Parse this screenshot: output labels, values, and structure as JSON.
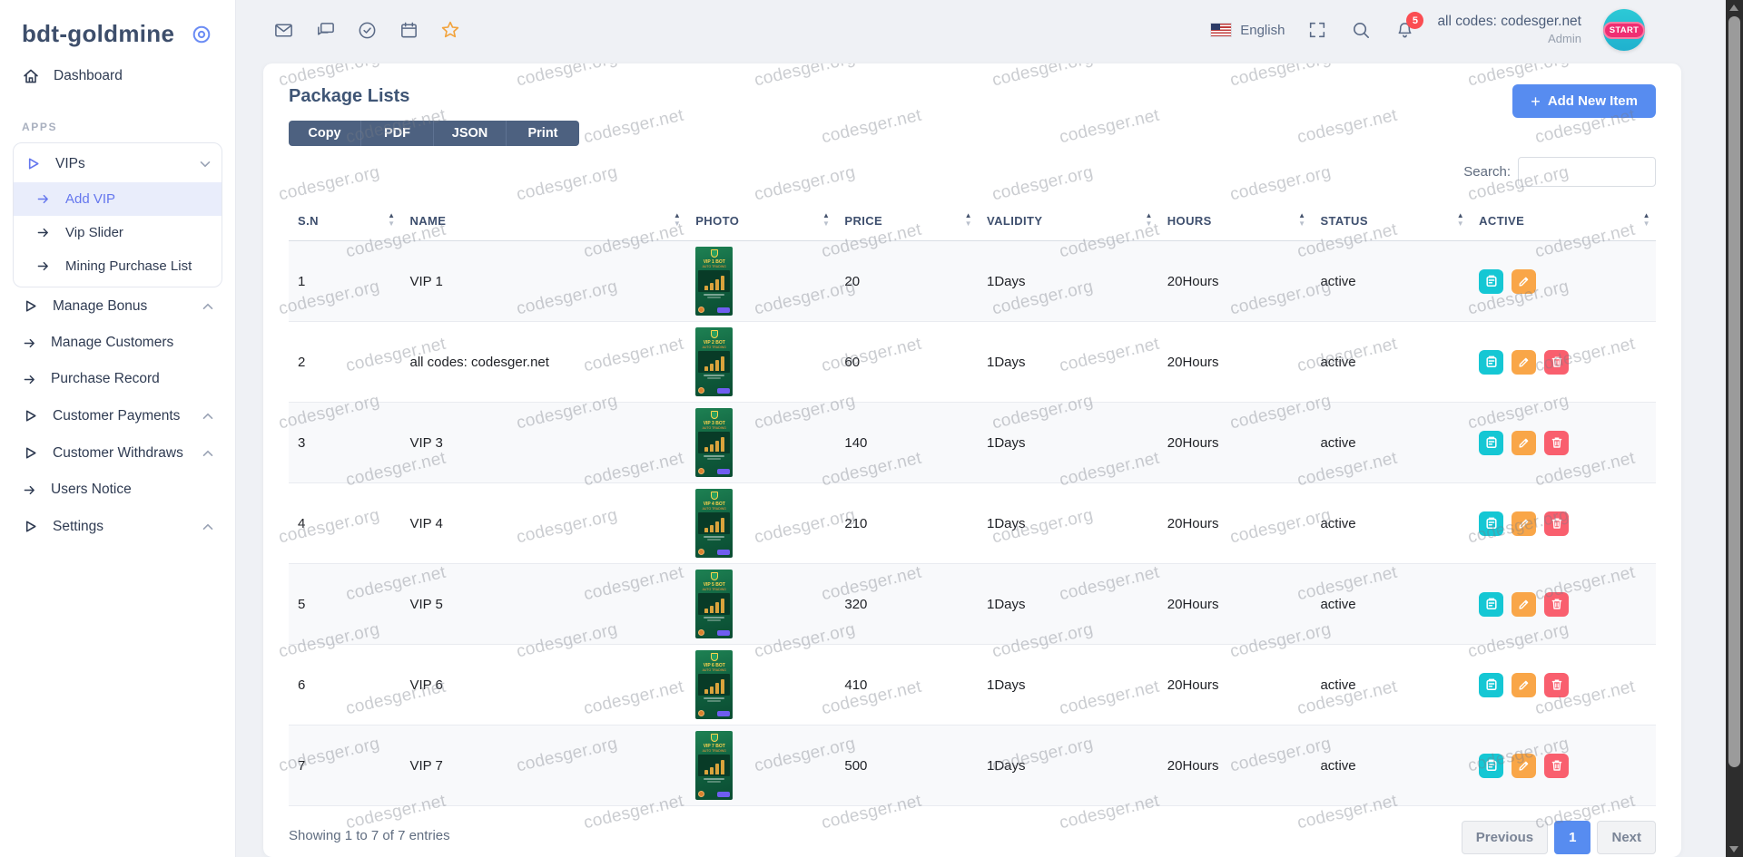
{
  "sidebar": {
    "brand": "bdt-goldmine",
    "section_label": "APPS",
    "items": [
      {
        "label": "Dashboard"
      },
      {
        "label": "VIPs",
        "children": [
          {
            "label": "Add VIP",
            "active": true
          },
          {
            "label": "Vip Slider"
          },
          {
            "label": "Mining Purchase List"
          }
        ]
      },
      {
        "label": "Manage Bonus"
      },
      {
        "label": "Manage Customers"
      },
      {
        "label": "Purchase Record"
      },
      {
        "label": "Customer Payments"
      },
      {
        "label": "Customer Withdraws"
      },
      {
        "label": "Users Notice"
      },
      {
        "label": "Settings"
      }
    ]
  },
  "topbar": {
    "language": "English",
    "notification_count": "5",
    "user": {
      "name": "all codes: codesger.net",
      "role": "Admin",
      "avatar_text": "START"
    }
  },
  "page": {
    "title": "Package Lists",
    "export_buttons": [
      "Copy",
      "PDF",
      "JSON",
      "Print"
    ],
    "add_item_label": "Add New Item",
    "add_item_plus": "+",
    "search_label": "Search:",
    "search_value": ""
  },
  "table": {
    "columns": [
      "S.N",
      "NAME",
      "PHOTO",
      "PRICE",
      "VALIDITY",
      "HOURS",
      "STATUS",
      "ACTIVE"
    ],
    "rows": [
      {
        "sn": "1",
        "name": "VIP 1",
        "photo_title": "VIP 1 BOT",
        "photo_subtitle": "AUTO TRADING",
        "price": "20",
        "validity": "1Days",
        "hours": "20Hours",
        "status": "active",
        "actions": [
          "view",
          "edit"
        ]
      },
      {
        "sn": "2",
        "name": "all codes: codesger.net",
        "photo_title": "VIP 2 BOT",
        "photo_subtitle": "AUTO TRADING",
        "price": "60",
        "validity": "1Days",
        "hours": "20Hours",
        "status": "active",
        "actions": [
          "view",
          "edit",
          "del"
        ]
      },
      {
        "sn": "3",
        "name": "VIP 3",
        "photo_title": "VIP 3 BOT",
        "photo_subtitle": "AUTO TRADING",
        "price": "140",
        "validity": "1Days",
        "hours": "20Hours",
        "status": "active",
        "actions": [
          "view",
          "edit",
          "del"
        ]
      },
      {
        "sn": "4",
        "name": "VIP 4",
        "photo_title": "VIP 4 BOT",
        "photo_subtitle": "AUTO TRADING",
        "price": "210",
        "validity": "1Days",
        "hours": "20Hours",
        "status": "active",
        "actions": [
          "view",
          "edit",
          "del"
        ]
      },
      {
        "sn": "5",
        "name": "VIP 5",
        "photo_title": "VIP 5 BOT",
        "photo_subtitle": "AUTO TRADING",
        "price": "320",
        "validity": "1Days",
        "hours": "20Hours",
        "status": "active",
        "actions": [
          "view",
          "edit",
          "del"
        ]
      },
      {
        "sn": "6",
        "name": "VIP 6",
        "photo_title": "VIP 6 BOT",
        "photo_subtitle": "AUTO TRADING",
        "price": "410",
        "validity": "1Days",
        "hours": "20Hours",
        "status": "active",
        "actions": [
          "view",
          "edit",
          "del"
        ]
      },
      {
        "sn": "7",
        "name": "VIP 7",
        "photo_title": "VIP 7 BOT",
        "photo_subtitle": "AUTO TRADING",
        "price": "500",
        "validity": "1Days",
        "hours": "20Hours",
        "status": "active",
        "actions": [
          "view",
          "edit",
          "del"
        ]
      }
    ],
    "footer_text": "Showing 1 to 7 of 7 entries",
    "pagination": {
      "previous": "Previous",
      "current": "1",
      "next": "Next"
    }
  },
  "watermarks": {
    "texts": [
      "codesger.org",
      "codesger.net"
    ]
  },
  "colors": {
    "accent_blue": "#578cf0",
    "indigo": "#6577ee",
    "teal": "#15c7d4",
    "orange": "#f9a648",
    "red": "#f95f6e",
    "dark_button": "#4d6180",
    "star_orange": "#f2a33c",
    "badge_red": "#fb4d52"
  }
}
